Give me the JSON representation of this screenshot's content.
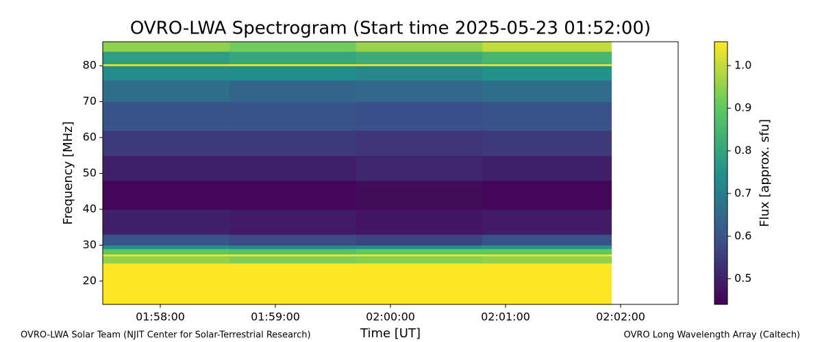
{
  "chart_data": {
    "type": "heatmap",
    "title": "OVRO-LWA Spectrogram (Start time 2025-05-23 01:52:00)",
    "xlabel": "Time [UT]",
    "ylabel": "Frequency [MHz]",
    "colorbar_label": "Flux [approx. sfu]",
    "colormap": "viridis",
    "credit_left": "OVRO-LWA Solar Team (NJIT Center for Solar-Terrestrial Research)",
    "credit_right": "OVRO Long Wavelength Array (Caltech)",
    "xlim": [
      5.5,
      10.5
    ],
    "xticks": [
      {
        "value": 6,
        "label": "01:58:00"
      },
      {
        "value": 7,
        "label": "01:59:00"
      },
      {
        "value": 8,
        "label": "02:00:00"
      },
      {
        "value": 9,
        "label": "02:01:00"
      },
      {
        "value": 10,
        "label": "02:02:00"
      }
    ],
    "ylim": [
      13.5,
      86.7
    ],
    "yticks": [
      20,
      30,
      40,
      50,
      60,
      70,
      80
    ],
    "zlim": [
      0.44,
      1.056
    ],
    "zticks": [
      0.5,
      0.6,
      0.7,
      0.8,
      0.9,
      {
        "value": 1,
        "label": "1.0"
      }
    ],
    "x_edges": [
      5.5,
      6.6,
      7.7,
      8.8,
      9.92
    ],
    "y_edges": [
      13.5,
      25,
      27,
      27.5,
      29,
      30,
      33,
      40,
      48,
      55,
      62,
      70,
      76,
      80,
      80.5,
      84,
      86.7
    ],
    "z": [
      [
        1.06,
        1.06,
        1.06,
        1.06
      ],
      [
        0.95,
        0.93,
        0.94,
        0.95
      ],
      [
        1.05,
        1.05,
        1.05,
        1.05
      ],
      [
        0.9,
        0.88,
        0.9,
        0.9
      ],
      [
        0.75,
        0.72,
        0.74,
        0.76
      ],
      [
        0.6,
        0.58,
        0.57,
        0.6
      ],
      [
        0.5,
        0.49,
        0.48,
        0.49
      ],
      [
        0.45,
        0.45,
        0.46,
        0.45
      ],
      [
        0.5,
        0.5,
        0.51,
        0.5
      ],
      [
        0.55,
        0.55,
        0.54,
        0.55
      ],
      [
        0.6,
        0.6,
        0.59,
        0.6
      ],
      [
        0.66,
        0.64,
        0.65,
        0.66
      ],
      [
        0.73,
        0.74,
        0.72,
        0.75
      ],
      [
        1.05,
        1.05,
        1.05,
        1.05
      ],
      [
        0.78,
        0.8,
        0.82,
        0.85
      ],
      [
        0.95,
        0.92,
        0.96,
        1.0
      ]
    ]
  }
}
